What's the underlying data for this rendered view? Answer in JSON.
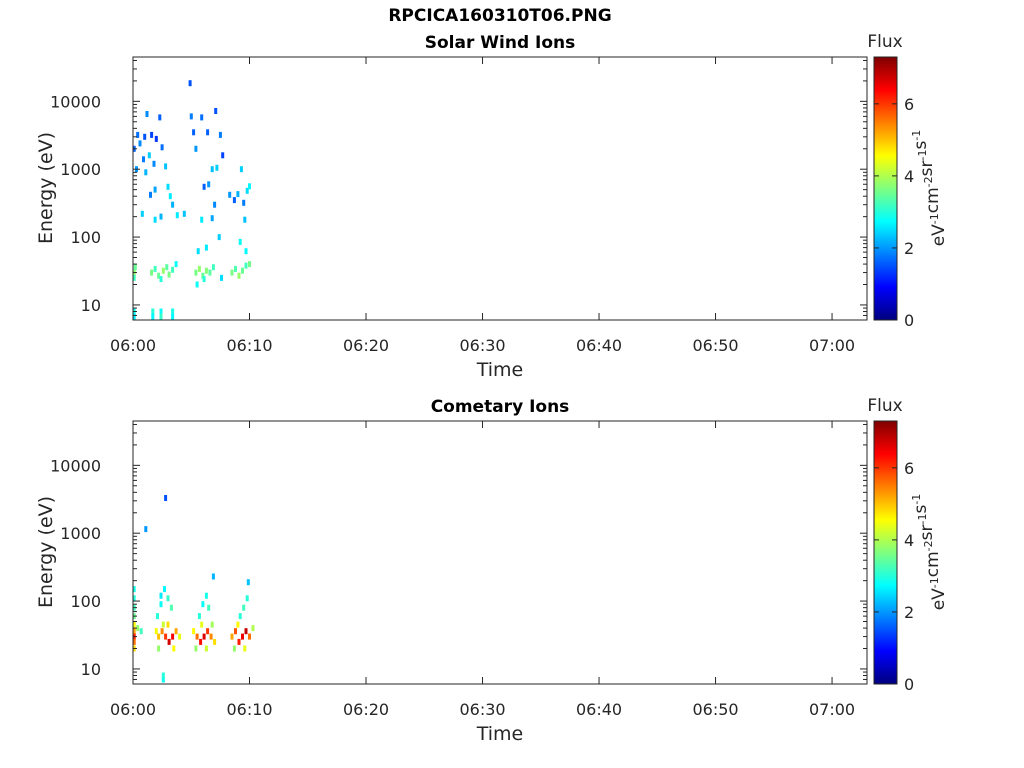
{
  "figure_title": "RPCICA160310T06.PNG",
  "colors": {
    "colormap": [
      "#00007f",
      "#0000ff",
      "#007fff",
      "#00ffff",
      "#7fff7f",
      "#ffff00",
      "#ff7f00",
      "#ff0000",
      "#7f0000"
    ]
  },
  "chart_data": [
    {
      "type": "heatmap",
      "title": "Solar Wind Ions",
      "xlabel": "Time",
      "ylabel": "Energy (eV)",
      "y_scale": "log",
      "xlim": [
        "06:00",
        "07:03"
      ],
      "ylim": [
        6,
        45000
      ],
      "x_ticks": [
        "06:00",
        "06:10",
        "06:20",
        "06:30",
        "06:40",
        "06:50",
        "07:00"
      ],
      "y_ticks": [
        {
          "value": 10,
          "label": "10"
        },
        {
          "value": 100,
          "label": "100"
        },
        {
          "value": 1000,
          "label": "1000"
        },
        {
          "value": 10000,
          "label": "10000"
        }
      ],
      "grid": false,
      "colorbar": {
        "title": "Flux",
        "label_parts": [
          "eV",
          "-1",
          "cm",
          "-2",
          "sr",
          "-1",
          "s",
          "-1"
        ],
        "range": [
          0,
          7.3
        ],
        "ticks": [
          "0",
          "2",
          "4",
          "6"
        ]
      },
      "points": [
        {
          "t": 0.1,
          "e": 2000,
          "v": 1.6
        },
        {
          "t": 0.4,
          "e": 3200,
          "v": 1.7
        },
        {
          "t": 0.6,
          "e": 2400,
          "v": 1.9
        },
        {
          "t": 0.9,
          "e": 1400,
          "v": 1.8
        },
        {
          "t": 1.0,
          "e": 3000,
          "v": 1.5
        },
        {
          "t": 1.2,
          "e": 6500,
          "v": 1.9
        },
        {
          "t": 1.4,
          "e": 1600,
          "v": 2.4
        },
        {
          "t": 1.6,
          "e": 3200,
          "v": 1.4
        },
        {
          "t": 1.8,
          "e": 1200,
          "v": 1.9
        },
        {
          "t": 2.0,
          "e": 2800,
          "v": 1.3
        },
        {
          "t": 2.3,
          "e": 5800,
          "v": 1.6
        },
        {
          "t": 2.5,
          "e": 2100,
          "v": 1.7
        },
        {
          "t": 0.3,
          "e": 1000,
          "v": 2.0
        },
        {
          "t": 1.1,
          "e": 900,
          "v": 2.2
        },
        {
          "t": 1.9,
          "e": 500,
          "v": 2.1
        },
        {
          "t": 2.8,
          "e": 1100,
          "v": 2.3
        },
        {
          "t": 3.0,
          "e": 550,
          "v": 2.5
        },
        {
          "t": 3.2,
          "e": 400,
          "v": 2.6
        },
        {
          "t": 3.4,
          "e": 300,
          "v": 2.2
        },
        {
          "t": 1.5,
          "e": 420,
          "v": 1.8
        },
        {
          "t": 0.8,
          "e": 220,
          "v": 2.4
        },
        {
          "t": 1.9,
          "e": 180,
          "v": 2.5
        },
        {
          "t": 2.4,
          "e": 200,
          "v": 2.2
        },
        {
          "t": 3.8,
          "e": 210,
          "v": 2.6
        },
        {
          "t": 4.4,
          "e": 220,
          "v": 2.3
        },
        {
          "t": 4.9,
          "e": 18500,
          "v": 1.5
        },
        {
          "t": 5.0,
          "e": 6000,
          "v": 1.8
        },
        {
          "t": 5.2,
          "e": 3500,
          "v": 1.6
        },
        {
          "t": 5.4,
          "e": 2000,
          "v": 2.0
        },
        {
          "t": 5.9,
          "e": 5800,
          "v": 1.7
        },
        {
          "t": 6.4,
          "e": 3500,
          "v": 1.6
        },
        {
          "t": 7.1,
          "e": 7200,
          "v": 1.5
        },
        {
          "t": 7.5,
          "e": 3200,
          "v": 1.8
        },
        {
          "t": 7.7,
          "e": 1600,
          "v": 1.4
        },
        {
          "t": 6.1,
          "e": 550,
          "v": 1.6
        },
        {
          "t": 6.5,
          "e": 600,
          "v": 2.0
        },
        {
          "t": 6.8,
          "e": 1000,
          "v": 2.3
        },
        {
          "t": 7.2,
          "e": 1050,
          "v": 2.4
        },
        {
          "t": 7.0,
          "e": 300,
          "v": 1.9
        },
        {
          "t": 8.3,
          "e": 420,
          "v": 2.0
        },
        {
          "t": 8.7,
          "e": 350,
          "v": 1.6
        },
        {
          "t": 9.0,
          "e": 430,
          "v": 2.2
        },
        {
          "t": 9.3,
          "e": 1000,
          "v": 2.4
        },
        {
          "t": 9.5,
          "e": 320,
          "v": 1.8
        },
        {
          "t": 9.8,
          "e": 480,
          "v": 2.5
        },
        {
          "t": 10.0,
          "e": 560,
          "v": 2.7
        },
        {
          "t": 5.9,
          "e": 180,
          "v": 2.6
        },
        {
          "t": 6.8,
          "e": 190,
          "v": 2.1
        },
        {
          "t": 7.4,
          "e": 100,
          "v": 2.4
        },
        {
          "t": 9.6,
          "e": 180,
          "v": 2.3
        },
        {
          "t": 5.6,
          "e": 62,
          "v": 2.5
        },
        {
          "t": 6.3,
          "e": 70,
          "v": 2.6
        },
        {
          "t": 9.2,
          "e": 85,
          "v": 2.8
        },
        {
          "t": 9.7,
          "e": 62,
          "v": 2.7
        },
        {
          "t": 0.1,
          "e": 30,
          "v": 3.8
        },
        {
          "t": 0.2,
          "e": 36,
          "v": 3.5
        },
        {
          "t": 0.1,
          "e": 25,
          "v": 3.2
        },
        {
          "t": 1.6,
          "e": 30,
          "v": 3.6
        },
        {
          "t": 1.9,
          "e": 34,
          "v": 3.2
        },
        {
          "t": 2.2,
          "e": 27,
          "v": 3.5
        },
        {
          "t": 2.6,
          "e": 32,
          "v": 3.8
        },
        {
          "t": 2.9,
          "e": 36,
          "v": 3.4
        },
        {
          "t": 3.1,
          "e": 28,
          "v": 3.6
        },
        {
          "t": 3.4,
          "e": 33,
          "v": 3.2
        },
        {
          "t": 3.7,
          "e": 40,
          "v": 2.8
        },
        {
          "t": 2.4,
          "e": 24,
          "v": 3.0
        },
        {
          "t": 5.4,
          "e": 30,
          "v": 3.6
        },
        {
          "t": 5.7,
          "e": 34,
          "v": 3.8
        },
        {
          "t": 6.0,
          "e": 27,
          "v": 3.5
        },
        {
          "t": 6.3,
          "e": 32,
          "v": 3.7
        },
        {
          "t": 6.6,
          "e": 30,
          "v": 3.4
        },
        {
          "t": 6.9,
          "e": 36,
          "v": 3.2
        },
        {
          "t": 5.5,
          "e": 20,
          "v": 2.8
        },
        {
          "t": 6.1,
          "e": 24,
          "v": 3.0
        },
        {
          "t": 7.6,
          "e": 25,
          "v": 2.5
        },
        {
          "t": 8.5,
          "e": 30,
          "v": 3.6
        },
        {
          "t": 8.8,
          "e": 34,
          "v": 3.3
        },
        {
          "t": 9.1,
          "e": 27,
          "v": 3.8
        },
        {
          "t": 9.4,
          "e": 32,
          "v": 3.5
        },
        {
          "t": 9.7,
          "e": 38,
          "v": 3.2
        },
        {
          "t": 10.0,
          "e": 40,
          "v": 3.6
        },
        {
          "t": 0.1,
          "e": 8,
          "v": 2.9
        },
        {
          "t": 0.1,
          "e": 6.7,
          "v": 2.6
        },
        {
          "t": 1.7,
          "e": 8,
          "v": 3.0
        },
        {
          "t": 1.7,
          "e": 6.7,
          "v": 2.7
        },
        {
          "t": 2.4,
          "e": 8,
          "v": 2.8
        },
        {
          "t": 2.4,
          "e": 6.7,
          "v": 3.1
        },
        {
          "t": 3.4,
          "e": 8,
          "v": 2.9
        },
        {
          "t": 3.4,
          "e": 6.7,
          "v": 2.7
        }
      ]
    },
    {
      "type": "heatmap",
      "title": "Cometary Ions",
      "xlabel": "Time",
      "ylabel": "Energy (eV)",
      "y_scale": "log",
      "xlim": [
        "06:00",
        "07:03"
      ],
      "ylim": [
        6,
        45000
      ],
      "x_ticks": [
        "06:00",
        "06:10",
        "06:20",
        "06:30",
        "06:40",
        "06:50",
        "07:00"
      ],
      "y_ticks": [
        {
          "value": 10,
          "label": "10"
        },
        {
          "value": 100,
          "label": "100"
        },
        {
          "value": 1000,
          "label": "1000"
        },
        {
          "value": 10000,
          "label": "10000"
        }
      ],
      "grid": false,
      "colorbar": {
        "title": "Flux",
        "label_parts": [
          "eV",
          "-1",
          "cm",
          "-2",
          "sr",
          "-1",
          "s",
          "-1"
        ],
        "range": [
          0,
          7.3
        ],
        "ticks": [
          "0",
          "2",
          "4",
          "6"
        ]
      },
      "points": [
        {
          "t": 2.8,
          "e": 3300,
          "v": 1.5
        },
        {
          "t": 1.1,
          "e": 1150,
          "v": 2.0
        },
        {
          "t": 6.9,
          "e": 230,
          "v": 2.2
        },
        {
          "t": 9.9,
          "e": 190,
          "v": 2.3
        },
        {
          "t": 0.1,
          "e": 150,
          "v": 2.9
        },
        {
          "t": 0.1,
          "e": 110,
          "v": 3.0
        },
        {
          "t": 0.1,
          "e": 80,
          "v": 3.2
        },
        {
          "t": 0.1,
          "e": 60,
          "v": 3.5
        },
        {
          "t": 0.1,
          "e": 45,
          "v": 4.5
        },
        {
          "t": 0.1,
          "e": 36,
          "v": 5.2
        },
        {
          "t": 0.1,
          "e": 30,
          "v": 6.2
        },
        {
          "t": 0.1,
          "e": 25,
          "v": 5.6
        },
        {
          "t": 0.1,
          "e": 20,
          "v": 4.8
        },
        {
          "t": 0.4,
          "e": 40,
          "v": 3.8
        },
        {
          "t": 0.7,
          "e": 36,
          "v": 3.2
        },
        {
          "t": 2.1,
          "e": 60,
          "v": 3.0
        },
        {
          "t": 2.4,
          "e": 90,
          "v": 2.8
        },
        {
          "t": 2.4,
          "e": 120,
          "v": 2.6
        },
        {
          "t": 2.7,
          "e": 150,
          "v": 2.7
        },
        {
          "t": 3.0,
          "e": 110,
          "v": 3.1
        },
        {
          "t": 3.3,
          "e": 80,
          "v": 3.3
        },
        {
          "t": 2.0,
          "e": 36,
          "v": 4.5
        },
        {
          "t": 2.2,
          "e": 30,
          "v": 5.0
        },
        {
          "t": 2.5,
          "e": 36,
          "v": 5.4
        },
        {
          "t": 2.8,
          "e": 30,
          "v": 6.0
        },
        {
          "t": 3.1,
          "e": 25,
          "v": 6.7
        },
        {
          "t": 3.4,
          "e": 30,
          "v": 6.4
        },
        {
          "t": 3.7,
          "e": 36,
          "v": 5.2
        },
        {
          "t": 4.0,
          "e": 30,
          "v": 4.4
        },
        {
          "t": 2.2,
          "e": 20,
          "v": 3.8
        },
        {
          "t": 2.6,
          "e": 45,
          "v": 4.2
        },
        {
          "t": 3.5,
          "e": 20,
          "v": 4.6
        },
        {
          "t": 3.0,
          "e": 45,
          "v": 4.8
        },
        {
          "t": 2.6,
          "e": 7,
          "v": 2.8
        },
        {
          "t": 2.6,
          "e": 8,
          "v": 3.0
        },
        {
          "t": 5.7,
          "e": 60,
          "v": 3.0
        },
        {
          "t": 6.0,
          "e": 90,
          "v": 2.8
        },
        {
          "t": 6.3,
          "e": 120,
          "v": 2.9
        },
        {
          "t": 6.5,
          "e": 80,
          "v": 3.2
        },
        {
          "t": 5.2,
          "e": 36,
          "v": 4.6
        },
        {
          "t": 5.5,
          "e": 30,
          "v": 5.6
        },
        {
          "t": 5.8,
          "e": 25,
          "v": 6.3
        },
        {
          "t": 6.1,
          "e": 30,
          "v": 6.6
        },
        {
          "t": 6.4,
          "e": 36,
          "v": 6.0
        },
        {
          "t": 6.7,
          "e": 30,
          "v": 5.4
        },
        {
          "t": 7.0,
          "e": 25,
          "v": 4.8
        },
        {
          "t": 5.4,
          "e": 20,
          "v": 3.8
        },
        {
          "t": 6.3,
          "e": 20,
          "v": 4.2
        },
        {
          "t": 5.9,
          "e": 45,
          "v": 4.4
        },
        {
          "t": 6.8,
          "e": 45,
          "v": 3.9
        },
        {
          "t": 9.2,
          "e": 60,
          "v": 3.0
        },
        {
          "t": 9.5,
          "e": 80,
          "v": 3.2
        },
        {
          "t": 9.8,
          "e": 110,
          "v": 3.0
        },
        {
          "t": 8.5,
          "e": 30,
          "v": 5.2
        },
        {
          "t": 8.8,
          "e": 36,
          "v": 5.8
        },
        {
          "t": 9.1,
          "e": 25,
          "v": 6.2
        },
        {
          "t": 9.4,
          "e": 30,
          "v": 6.5
        },
        {
          "t": 9.7,
          "e": 36,
          "v": 6.8
        },
        {
          "t": 10.0,
          "e": 30,
          "v": 5.6
        },
        {
          "t": 10.3,
          "e": 40,
          "v": 4.0
        },
        {
          "t": 8.7,
          "e": 20,
          "v": 3.8
        },
        {
          "t": 9.6,
          "e": 20,
          "v": 4.4
        },
        {
          "t": 9.0,
          "e": 45,
          "v": 4.6
        }
      ]
    }
  ]
}
